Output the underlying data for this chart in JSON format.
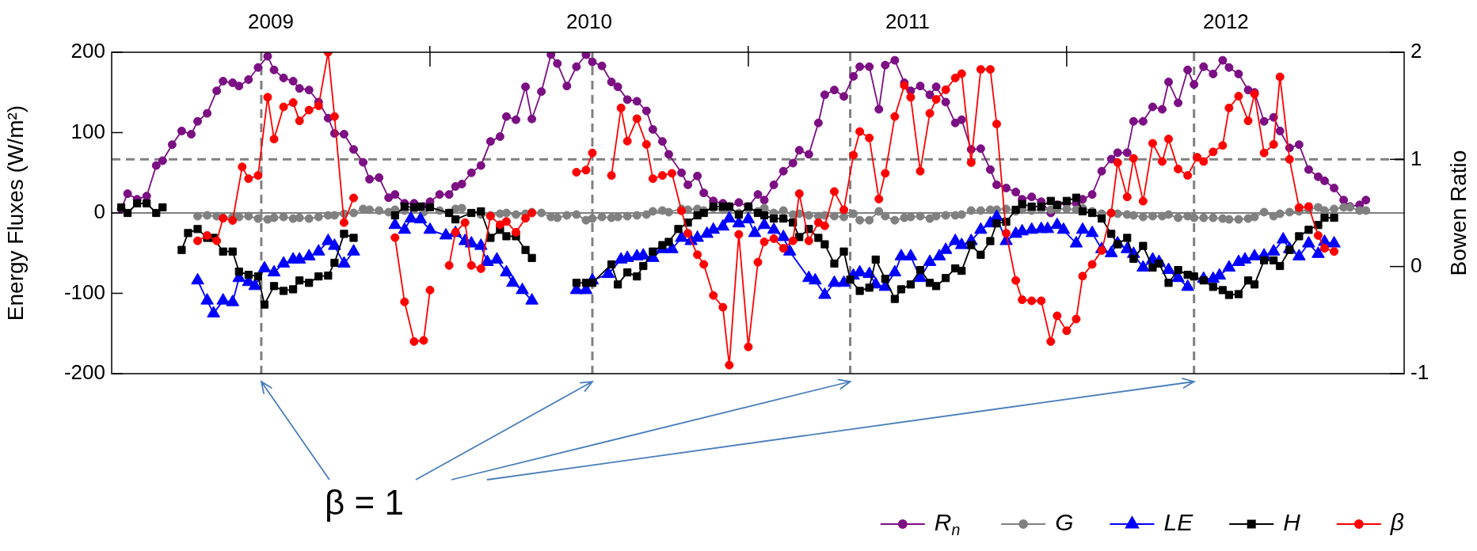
{
  "chart_data": {
    "type": "line",
    "ylabel": "Energy Fluxes (W/m²)",
    "y2label": "Bowen Ratio",
    "annotations": [
      "β = 1"
    ],
    "xlim": [
      2009,
      2013.06
    ],
    "xticks": [
      {
        "value": 2009.5,
        "label": "2009"
      },
      {
        "value": 2010,
        "label": null
      },
      {
        "value": 2010.5,
        "label": "2010"
      },
      {
        "value": 2011,
        "label": null
      },
      {
        "value": 2011.5,
        "label": "2011"
      },
      {
        "value": 2012,
        "label": null
      },
      {
        "value": 2012.5,
        "label": "2012"
      }
    ],
    "ylim": [
      -200,
      200
    ],
    "yticks": [
      -200,
      -100,
      0,
      100,
      200
    ],
    "y2lim": [
      -1,
      2
    ],
    "y2ticks": [
      -1,
      0,
      1,
      2
    ],
    "legend": "bottom right",
    "ref_lines": [
      {
        "axis": "y",
        "value": 0,
        "color": "#000000",
        "line_style": "solid"
      },
      {
        "axis": "y2",
        "value": 1,
        "color": "#808080",
        "line_style": "dashed"
      },
      {
        "axis": "x",
        "value": 2009.47,
        "color": "#808080",
        "line_style": "dashed"
      },
      {
        "axis": "x",
        "value": 2010.51,
        "color": "#808080",
        "line_style": "dashed"
      },
      {
        "axis": "x",
        "value": 2011.32,
        "color": "#808080",
        "line_style": "dashed"
      },
      {
        "axis": "x",
        "value": 2012.4,
        "color": "#808080",
        "line_style": "dashed"
      }
    ],
    "series": [
      {
        "name": "R$_{n}$",
        "color": "#7b0f83",
        "marker": "circle",
        "x": [
          2009.03,
          2009.05,
          2009.08,
          2009.11,
          2009.14,
          2009.16,
          2009.19,
          2009.22,
          2009.25,
          2009.27,
          2009.3,
          2009.33,
          2009.35,
          2009.38,
          2009.4,
          2009.43,
          2009.46,
          2009.49,
          2009.51,
          2009.54,
          2009.57,
          2009.59,
          2009.62,
          2009.65,
          2009.68,
          2009.7,
          2009.73,
          2009.76,
          2009.79,
          2009.81,
          2009.84,
          2009.87,
          2009.89,
          2009.92,
          2009.95,
          2009.98,
          2010.0,
          2010.03,
          2010.06,
          2010.08,
          2010.1,
          2010.13,
          2010.16,
          2010.19,
          2010.22,
          2010.24,
          2010.27,
          2010.3,
          2010.32,
          2010.35,
          2010.38,
          2010.4,
          2010.43,
          2010.46,
          2010.49,
          2010.51,
          2010.54,
          2010.57,
          2010.59,
          2010.62,
          2010.65,
          2010.68,
          2010.7,
          2010.73,
          2010.75,
          2010.79,
          2010.81,
          2010.84,
          2010.86,
          2010.89,
          2010.92,
          2010.94,
          2010.97,
          2011.0,
          2011.03,
          2011.05,
          2011.08,
          2011.11,
          2011.14,
          2011.16,
          2011.19,
          2011.22,
          2011.24,
          2011.27,
          2011.3,
          2011.33,
          2011.35,
          2011.38,
          2011.41,
          2011.43,
          2011.46,
          2011.49,
          2011.51,
          2011.54,
          2011.57,
          2011.59,
          2011.62,
          2011.65,
          2011.67,
          2011.7,
          2011.73,
          2011.76,
          2011.78,
          2011.81,
          2011.84,
          2011.86,
          2011.89,
          2011.92,
          2011.95,
          2011.97,
          2012.0,
          2012.03,
          2012.05,
          2012.08,
          2012.11,
          2012.14,
          2012.16,
          2012.19,
          2012.21,
          2012.24,
          2012.27,
          2012.3,
          2012.32,
          2012.35,
          2012.38,
          2012.4,
          2012.43,
          2012.46,
          2012.49,
          2012.51,
          2012.54,
          2012.57,
          2012.59,
          2012.62,
          2012.65,
          2012.67,
          2012.7,
          2012.73,
          2012.76,
          2012.79,
          2012.81,
          2012.84,
          2012.87,
          2012.89,
          2012.92,
          2012.94
        ],
        "values": [
          5,
          24,
          17,
          21,
          59,
          65,
          85,
          102,
          98,
          114,
          124,
          152,
          164,
          162,
          158,
          166,
          181,
          195,
          178,
          168,
          164,
          155,
          153,
          138,
          118,
          99,
          98,
          79,
          63,
          42,
          44,
          19,
          23,
          12,
          12,
          8,
          14,
          23,
          23,
          33,
          36,
          50,
          59,
          89,
          95,
          120,
          116,
          157,
          117,
          151,
          197,
          186,
          158,
          182,
          197,
          188,
          183,
          163,
          157,
          141,
          139,
          127,
          104,
          89,
          73,
          50,
          35,
          46,
          25,
          15,
          12,
          8,
          13,
          8,
          23,
          16,
          35,
          52,
          62,
          78,
          73,
          112,
          147,
          153,
          145,
          170,
          182,
          182,
          129,
          184,
          190,
          162,
          152,
          158,
          147,
          157,
          138,
          112,
          116,
          79,
          80,
          54,
          35,
          31,
          26,
          17,
          20,
          14,
          0,
          10,
          12,
          12,
          17,
          23,
          52,
          67,
          75,
          75,
          114,
          114,
          132,
          129,
          163,
          137,
          178,
          160,
          182,
          173,
          190,
          181,
          173,
          153,
          150,
          114,
          119,
          102,
          81,
          85,
          54,
          45,
          40,
          31,
          16,
          8,
          10,
          16
        ]
      },
      {
        "name": "G",
        "color": "#808080",
        "marker": "circle",
        "x": [
          2009.27,
          2009.3,
          2009.33,
          2009.35,
          2009.38,
          2009.4,
          2009.43,
          2009.46,
          2009.49,
          2009.51,
          2009.54,
          2009.57,
          2009.59,
          2009.62,
          2009.65,
          2009.68,
          2009.7,
          2009.73,
          2009.76,
          2009.79,
          2009.81,
          2009.84,
          2009.87,
          2009.89,
          2009.92,
          2009.95,
          2009.98,
          2010.0,
          2010.03,
          2010.06,
          2010.08,
          2010.1,
          2010.13,
          2010.16,
          2010.19,
          2010.22,
          2010.24,
          2010.27,
          2010.3,
          2010.32,
          2010.35,
          2010.38,
          2010.4,
          2010.43,
          2010.46,
          2010.49,
          2010.51,
          2010.54,
          2010.57,
          2010.59,
          2010.62,
          2010.65,
          2010.68,
          2010.7,
          2010.73,
          2010.75,
          2010.79,
          2010.81,
          2010.84,
          2010.86,
          2010.89,
          2010.92,
          2010.94,
          2010.97,
          2011.0,
          2011.03,
          2011.05,
          2011.08,
          2011.11,
          2011.14,
          2011.16,
          2011.19,
          2011.22,
          2011.24,
          2011.27,
          2011.3,
          2011.33,
          2011.35,
          2011.38,
          2011.41,
          2011.43,
          2011.46,
          2011.49,
          2011.51,
          2011.54,
          2011.57,
          2011.59,
          2011.62,
          2011.65,
          2011.67,
          2011.7,
          2011.73,
          2011.76,
          2011.78,
          2011.81,
          2011.84,
          2011.86,
          2011.89,
          2011.92,
          2011.95,
          2011.97,
          2012.0,
          2012.03,
          2012.05,
          2012.08,
          2012.11,
          2012.14,
          2012.16,
          2012.19,
          2012.21,
          2012.24,
          2012.27,
          2012.3,
          2012.32,
          2012.35,
          2012.38,
          2012.4,
          2012.43,
          2012.46,
          2012.49,
          2012.51,
          2012.54,
          2012.57,
          2012.59,
          2012.62,
          2012.65,
          2012.67,
          2012.7,
          2012.73,
          2012.76,
          2012.79,
          2012.81,
          2012.84,
          2012.87,
          2012.89,
          2012.92,
          2012.94
        ],
        "values": [
          -4,
          -3,
          -4,
          -6,
          -5,
          -5,
          -4,
          -7,
          -8,
          -6,
          -5,
          -7,
          -6,
          -7,
          -5,
          -3,
          -3,
          -1,
          0,
          5,
          4,
          3,
          1,
          4,
          3,
          5,
          1,
          null,
          3,
          0,
          5,
          6,
          null,
          -2,
          -3,
          -1,
          0,
          -2,
          -1,
          1,
          0,
          -5,
          -6,
          -3,
          -2,
          -9,
          -7,
          -5,
          -6,
          -5,
          -4,
          -3,
          -2,
          2,
          3,
          1,
          5,
          4,
          5,
          3,
          6,
          4,
          5,
          0,
          5,
          2,
          6,
          0,
          3,
          -2,
          -1,
          -3,
          -4,
          -3,
          -4,
          -5,
          -1,
          -9,
          -9,
          2,
          -4,
          -9,
          -6,
          -5,
          -4,
          -7,
          -4,
          -3,
          -3,
          -2,
          3,
          3,
          4,
          4,
          5,
          2,
          4,
          3,
          4,
          4,
          5,
          5,
          4,
          6,
          2,
          -1,
          0,
          -1,
          -2,
          -3,
          -5,
          -4,
          -4,
          -2,
          -6,
          -4,
          -6,
          -6,
          -6,
          -7,
          -8,
          -8,
          -7,
          -5,
          1,
          -4,
          -1,
          1,
          2,
          4,
          7,
          3,
          5,
          7,
          7,
          3,
          3
        ]
      },
      {
        "name": "LE",
        "color": "#0000ff",
        "marker": "triangle",
        "x": [
          2009.27,
          2009.3,
          2009.32,
          2009.35,
          2009.38,
          2009.4,
          2009.43,
          2009.45,
          2009.48,
          2009.51,
          2009.54,
          2009.57,
          2009.59,
          2009.62,
          2009.65,
          2009.68,
          2009.7,
          2009.73,
          2009.76,
          2009.82,
          2009.89,
          2009.92,
          2009.94,
          2009.97,
          2010.0,
          2010.05,
          2010.08,
          2010.11,
          2010.13,
          2010.16,
          2010.18,
          2010.21,
          2010.24,
          2010.26,
          2010.29,
          2010.32,
          2010.39,
          2010.46,
          2010.49,
          2010.51,
          2010.56,
          2010.6,
          2010.62,
          2010.65,
          2010.67,
          2010.7,
          2010.73,
          2010.76,
          2010.79,
          2010.82,
          2010.84,
          2010.87,
          2010.89,
          2010.92,
          2010.94,
          2010.97,
          2011.0,
          2011.02,
          2011.05,
          2011.08,
          2011.11,
          2011.13,
          2011.19,
          2011.21,
          2011.24,
          2011.27,
          2011.3,
          2011.33,
          2011.35,
          2011.38,
          2011.4,
          2011.43,
          2011.46,
          2011.48,
          2011.51,
          2011.54,
          2011.57,
          2011.6,
          2011.62,
          2011.65,
          2011.67,
          2011.7,
          2011.73,
          2011.76,
          2011.78,
          2011.81,
          2011.84,
          2011.86,
          2011.89,
          2011.92,
          2011.94,
          2011.97,
          2011.99,
          2012.03,
          2012.05,
          2012.08,
          2012.11,
          2012.14,
          2012.16,
          2012.19,
          2012.21,
          2012.24,
          2012.27,
          2012.29,
          2012.32,
          2012.35,
          2012.38,
          2012.4,
          2012.43,
          2012.46,
          2012.48,
          2012.51,
          2012.54,
          2012.56,
          2012.59,
          2012.62,
          2012.65,
          2012.68,
          2012.7,
          2012.73,
          2012.76,
          2012.79,
          2012.81,
          2012.84
        ],
        "values": [
          -84,
          -109,
          -125,
          -109,
          -111,
          -81,
          -86,
          -91,
          -69,
          -74,
          -63,
          -58,
          -58,
          -54,
          -48,
          -35,
          -41,
          -63,
          -48,
          null,
          -15,
          -21,
          -7,
          -8,
          -21,
          -28,
          -25,
          -35,
          -38,
          -41,
          -61,
          -58,
          -74,
          -87,
          -96,
          -109,
          null,
          -96,
          -96,
          -84,
          -76,
          -58,
          -56,
          -54,
          -53,
          -56,
          -45,
          -45,
          -31,
          -35,
          -31,
          -26,
          -21,
          -17,
          -7,
          -13,
          -8,
          -25,
          -15,
          -21,
          -30,
          -48,
          -81,
          -84,
          -102,
          -87,
          -87,
          -78,
          -74,
          -76,
          -89,
          -92,
          -74,
          -54,
          -54,
          -81,
          -61,
          -54,
          -46,
          -35,
          -40,
          -35,
          -21,
          -13,
          -5,
          -35,
          -26,
          -23,
          -21,
          -20,
          -20,
          -15,
          -21,
          -38,
          -21,
          -25,
          -45,
          -50,
          -38,
          -45,
          -51,
          -68,
          -58,
          -61,
          -71,
          -81,
          -92,
          null,
          -82,
          -82,
          -78,
          -68,
          -61,
          -58,
          -54,
          -53,
          -48,
          -33,
          -45,
          -54,
          -38,
          -51,
          -36,
          -38
        ]
      },
      {
        "name": "H",
        "color": "#000000",
        "marker": "square",
        "x": [
          2009.03,
          2009.05,
          2009.08,
          2009.11,
          2009.14,
          2009.16,
          2009.19,
          2009.22,
          2009.24,
          2009.27,
          2009.3,
          2009.32,
          2009.35,
          2009.38,
          2009.4,
          2009.43,
          2009.46,
          2009.48,
          2009.51,
          2009.54,
          2009.57,
          2009.59,
          2009.62,
          2009.65,
          2009.68,
          2009.7,
          2009.73,
          2009.76,
          2009.82,
          2009.89,
          2009.92,
          2009.95,
          2009.97,
          2010.0,
          2010.06,
          2010.08,
          2010.13,
          2010.16,
          2010.19,
          2010.22,
          2010.24,
          2010.27,
          2010.3,
          2010.32,
          2010.39,
          2010.46,
          2010.49,
          2010.51,
          2010.57,
          2010.59,
          2010.62,
          2010.65,
          2010.67,
          2010.7,
          2010.73,
          2010.75,
          2010.78,
          2010.81,
          2010.84,
          2010.86,
          2010.89,
          2010.92,
          2010.94,
          2010.97,
          2011.0,
          2011.03,
          2011.05,
          2011.08,
          2011.11,
          2011.14,
          2011.16,
          2011.19,
          2011.22,
          2011.24,
          2011.27,
          2011.3,
          2011.32,
          2011.35,
          2011.38,
          2011.4,
          2011.43,
          2011.46,
          2011.48,
          2011.51,
          2011.54,
          2011.57,
          2011.59,
          2011.62,
          2011.65,
          2011.67,
          2011.7,
          2011.73,
          2011.76,
          2011.78,
          2011.81,
          2011.84,
          2011.86,
          2011.89,
          2011.92,
          2011.95,
          2011.97,
          2012.0,
          2012.03,
          2012.05,
          2012.08,
          2012.11,
          2012.14,
          2012.16,
          2012.19,
          2012.21,
          2012.24,
          2012.27,
          2012.29,
          2012.32,
          2012.35,
          2012.38,
          2012.4,
          2012.43,
          2012.46,
          2012.49,
          2012.51,
          2012.54,
          2012.57,
          2012.59,
          2012.62,
          2012.65,
          2012.67,
          2012.7,
          2012.73,
          2012.76,
          2012.79,
          2012.81,
          2012.84
        ],
        "values": [
          7,
          0,
          12,
          12,
          0,
          7,
          null,
          -46,
          -25,
          -20,
          -31,
          -31,
          -48,
          -48,
          -73,
          -77,
          -79,
          -114,
          -91,
          -97,
          -95,
          -84,
          -87,
          -79,
          -78,
          -62,
          -26,
          -31,
          null,
          -3,
          8,
          7,
          8,
          7,
          0,
          -8,
          0,
          2,
          -31,
          -21,
          -29,
          -29,
          -46,
          -56,
          null,
          -87,
          -87,
          -87,
          -64,
          -89,
          -74,
          -79,
          -66,
          -48,
          -40,
          -36,
          -20,
          -12,
          -3,
          0,
          8,
          8,
          8,
          -2,
          8,
          0,
          -3,
          -7,
          -7,
          -12,
          -30,
          -20,
          -31,
          -39,
          -63,
          -48,
          -83,
          -97,
          -93,
          -58,
          -82,
          -107,
          -95,
          -89,
          -71,
          -87,
          -91,
          -81,
          -69,
          -72,
          -40,
          -52,
          -35,
          -13,
          -11,
          4,
          11,
          8,
          8,
          15,
          10,
          15,
          19,
          2,
          0,
          -7,
          -26,
          -39,
          -31,
          -57,
          -41,
          -68,
          -63,
          -87,
          -71,
          -77,
          -79,
          -84,
          -92,
          -96,
          -102,
          -101,
          -84,
          -89,
          -59,
          -59,
          -66,
          -46,
          -29,
          -21,
          -15,
          -6,
          -6
        ]
      },
      {
        "name": "β",
        "color": "#ff0000",
        "marker": "circle",
        "axis": "y2",
        "x": [
          2009.27,
          2009.3,
          2009.33,
          2009.35,
          2009.38,
          2009.41,
          2009.43,
          2009.46,
          2009.49,
          2009.51,
          2009.54,
          2009.57,
          2009.59,
          2009.62,
          2009.65,
          2009.68,
          2009.7,
          2009.73,
          2009.76,
          2009.82,
          2009.89,
          2009.92,
          2009.95,
          2009.98,
          2010.0,
          2010.03,
          2010.06,
          2010.08,
          2010.11,
          2010.13,
          2010.16,
          2010.19,
          2010.22,
          2010.24,
          2010.27,
          2010.3,
          2010.32,
          2010.39,
          2010.46,
          2010.49,
          2010.51,
          2010.54,
          2010.57,
          2010.6,
          2010.62,
          2010.65,
          2010.68,
          2010.7,
          2010.73,
          2010.76,
          2010.79,
          2010.81,
          2010.84,
          2010.86,
          2010.89,
          2010.92,
          2010.94,
          2010.97,
          2011.0,
          2011.03,
          2011.05,
          2011.08,
          2011.11,
          2011.14,
          2011.16,
          2011.19,
          2011.22,
          2011.24,
          2011.27,
          2011.3,
          2011.33,
          2011.35,
          2011.38,
          2011.41,
          2011.43,
          2011.46,
          2011.49,
          2011.51,
          2011.54,
          2011.57,
          2011.59,
          2011.62,
          2011.65,
          2011.67,
          2011.7,
          2011.73,
          2011.76,
          2011.78,
          2011.81,
          2011.84,
          2011.86,
          2011.89,
          2011.92,
          2011.95,
          2011.97,
          2012.0,
          2012.03,
          2012.05,
          2012.08,
          2012.11,
          2012.14,
          2012.16,
          2012.19,
          2012.21,
          2012.24,
          2012.27,
          2012.3,
          2012.32,
          2012.35,
          2012.38,
          2012.41,
          2012.43,
          2012.46,
          2012.49,
          2012.51,
          2012.54,
          2012.57,
          2012.59,
          2012.62,
          2012.65,
          2012.67,
          2012.7,
          2012.73,
          2012.76,
          2012.79,
          2012.81,
          2012.84
        ],
        "values": [
          0.24,
          0.29,
          0.24,
          0.45,
          0.43,
          0.93,
          0.82,
          0.85,
          1.58,
          1.19,
          1.49,
          1.53,
          1.36,
          1.46,
          1.5,
          2.0,
          1.4,
          0.41,
          0.64,
          null,
          0.27,
          -0.33,
          -0.7,
          -0.69,
          -0.22,
          null,
          0.01,
          0.32,
          0.41,
          0.01,
          -0.02,
          0.47,
          0.39,
          0.42,
          0.32,
          0.45,
          0.5,
          null,
          0.88,
          0.9,
          1.06,
          null,
          0.85,
          1.48,
          1.17,
          1.38,
          1.14,
          0.82,
          0.85,
          0.87,
          0.52,
          0.31,
          0.11,
          0.02,
          -0.27,
          -0.38,
          -0.92,
          0.3,
          -0.75,
          0.04,
          0.23,
          0.26,
          0.17,
          0.24,
          0.68,
          0.24,
          0.41,
          0.38,
          0.7,
          0.53,
          1.04,
          1.26,
          1.2,
          0.63,
          0.87,
          1.4,
          1.69,
          1.58,
          0.89,
          1.43,
          1.56,
          1.65,
          1.76,
          1.8,
          0.97,
          1.84,
          1.84,
          1.33,
          0.31,
          -0.13,
          -0.31,
          -0.32,
          -0.32,
          -0.7,
          -0.46,
          -0.6,
          -0.49,
          -0.09,
          0.02,
          0.15,
          0.5,
          0.97,
          0.65,
          1.01,
          0.61,
          1.15,
          0.98,
          1.19,
          0.91,
          0.85,
          1.02,
          0.98,
          1.07,
          1.13,
          1.48,
          1.59,
          1.36,
          1.61,
          1.06,
          1.14,
          1.77,
          1.0,
          0.55,
          0.56,
          0.29,
          0.17,
          0.14
        ]
      }
    ]
  }
}
